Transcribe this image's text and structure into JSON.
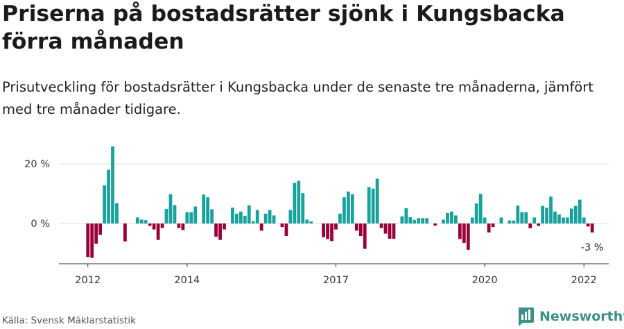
{
  "title": "Priserna på bostadsrätter sjönk i Kungsbacka förra månaden",
  "subtitle": "Prisutveckling för bostadsrätter i Kungsbacka under de senaste tre månaderna, jämfört med tre månader tidigare.",
  "source": "Källa: Svensk Mäklarstatistik",
  "brand": "Newsworthy",
  "colors": {
    "positive": "#17a29c",
    "negative": "#990038",
    "grid": "#dddddd",
    "axis": "#333333",
    "brand": "#3d8f8a"
  },
  "chart_data": {
    "type": "bar",
    "title": "",
    "xlabel": "",
    "ylabel": "",
    "ylim": [
      -13,
      27
    ],
    "y_ticks": [
      {
        "value": 0,
        "label": "0 %"
      },
      {
        "value": 20,
        "label": "20 %"
      }
    ],
    "x_ticks": [
      {
        "date": "2012-01",
        "label": "2012"
      },
      {
        "date": "2014-01",
        "label": "2014"
      },
      {
        "date": "2017-01",
        "label": "2017"
      },
      {
        "date": "2020-01",
        "label": "2020"
      },
      {
        "date": "2022-01",
        "label": "2022"
      }
    ],
    "x_range": [
      "2011-06",
      "2022-07"
    ],
    "grid": "horizontal",
    "last_label": "-3 %",
    "categories": [
      "2012-01",
      "2012-02",
      "2012-03",
      "2012-04",
      "2012-05",
      "2012-06",
      "2012-07",
      "2012-08",
      "2012-09",
      "2012-10",
      "2012-11",
      "2012-12",
      "2013-01",
      "2013-02",
      "2013-03",
      "2013-04",
      "2013-05",
      "2013-06",
      "2013-07",
      "2013-08",
      "2013-09",
      "2013-10",
      "2013-11",
      "2013-12",
      "2014-01",
      "2014-02",
      "2014-03",
      "2014-04",
      "2014-05",
      "2014-06",
      "2014-07",
      "2014-08",
      "2014-09",
      "2014-10",
      "2014-11",
      "2014-12",
      "2015-01",
      "2015-02",
      "2015-03",
      "2015-04",
      "2015-05",
      "2015-06",
      "2015-07",
      "2015-08",
      "2015-09",
      "2015-10",
      "2015-11",
      "2015-12",
      "2016-01",
      "2016-02",
      "2016-03",
      "2016-04",
      "2016-05",
      "2016-06",
      "2016-07",
      "2016-08",
      "2016-09",
      "2016-10",
      "2016-11",
      "2016-12",
      "2017-01",
      "2017-02",
      "2017-03",
      "2017-04",
      "2017-05",
      "2017-06",
      "2017-07",
      "2017-08",
      "2017-09",
      "2017-10",
      "2017-11",
      "2017-12",
      "2018-01",
      "2018-02",
      "2018-03",
      "2018-04",
      "2018-05",
      "2018-06",
      "2018-07",
      "2018-08",
      "2018-09",
      "2018-10",
      "2018-11",
      "2018-12",
      "2019-01",
      "2019-02",
      "2019-03",
      "2019-04",
      "2019-05",
      "2019-06",
      "2019-07",
      "2019-08",
      "2019-09",
      "2019-10",
      "2019-11",
      "2019-12",
      "2020-01",
      "2020-02",
      "2020-03",
      "2020-04",
      "2020-05",
      "2020-06",
      "2020-07",
      "2020-08",
      "2020-09",
      "2020-10",
      "2020-11",
      "2020-12",
      "2021-01",
      "2021-02",
      "2021-03",
      "2021-04",
      "2021-05",
      "2021-06",
      "2021-07",
      "2021-08",
      "2021-09",
      "2021-10",
      "2021-11",
      "2021-12",
      "2022-01",
      "2022-02",
      "2022-03"
    ],
    "values": [
      -11.2,
      -11.5,
      -6.8,
      -3.8,
      12.8,
      18.0,
      25.8,
      6.8,
      0,
      -6.0,
      0,
      0,
      2.0,
      1.3,
      1.1,
      -0.8,
      -2.0,
      -5.5,
      -1.5,
      4.9,
      9.8,
      6.2,
      -1.5,
      -2.2,
      3.8,
      3.8,
      5.7,
      0,
      9.7,
      8.8,
      4.8,
      -4.4,
      -5.5,
      -2.0,
      0,
      5.3,
      3.3,
      4.0,
      2.6,
      6.1,
      0.8,
      4.5,
      -2.4,
      3.3,
      4.5,
      2.7,
      0,
      -1.2,
      -4.2,
      4.5,
      13.6,
      14.3,
      10.2,
      1.3,
      0.7,
      0,
      0,
      -4.6,
      -5.2,
      -5.9,
      -2.0,
      3.3,
      8.8,
      10.7,
      9.8,
      -2.4,
      -4.2,
      -8.5,
      12.2,
      11.7,
      15.0,
      -1.5,
      -3.4,
      -5.1,
      -5.1,
      0,
      2.4,
      5.1,
      2.1,
      1.2,
      1.8,
      1.8,
      1.8,
      0,
      -0.7,
      0,
      1.3,
      3.5,
      4.0,
      2.7,
      -5.2,
      -6.5,
      -8.8,
      2.0,
      6.7,
      9.9,
      2.0,
      -3.0,
      -1.2,
      0,
      2.0,
      0,
      1.0,
      1.0,
      6.0,
      3.8,
      3.8,
      -1.6,
      2.0,
      -0.8,
      5.9,
      5.3,
      9.0,
      4.0,
      3.0,
      2.0,
      2.0,
      5.0,
      5.9,
      8.0,
      2.0,
      -1.0,
      -3.0
    ]
  }
}
